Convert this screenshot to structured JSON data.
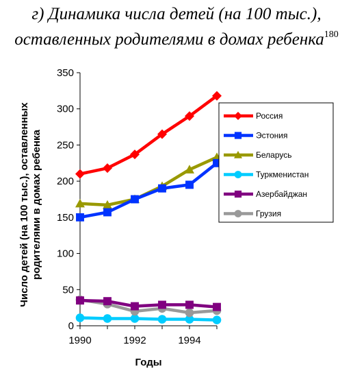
{
  "title": {
    "line1": "г) Динамика числа детей (на 100 тыс.),",
    "line2": "оставленных родителями в домах ребенка",
    "footnote": "180"
  },
  "chart_data": {
    "type": "line",
    "xlabel": "Годы",
    "ylabel_lines": [
      "Число детей (на 100 тыс.), оставленных",
      "родителями в домах ребенка"
    ],
    "x": [
      1990,
      1991,
      1992,
      1993,
      1994,
      1995
    ],
    "xticks": [
      1990,
      1992,
      1994
    ],
    "yticks": [
      0,
      50,
      100,
      150,
      200,
      250,
      300,
      350
    ],
    "ylim": [
      0,
      350
    ],
    "xlim": [
      1990,
      1995
    ],
    "grid": false,
    "legend_position": "right",
    "series": [
      {
        "name": "Россия",
        "color": "#ff0000",
        "marker": "diamond",
        "values": [
          210,
          218,
          237,
          265,
          290,
          318
        ]
      },
      {
        "name": "Эстония",
        "color": "#0033ff",
        "marker": "square",
        "values": [
          150,
          157,
          175,
          190,
          195,
          225
        ]
      },
      {
        "name": "Беларусь",
        "color": "#999900",
        "marker": "triangle",
        "values": [
          169,
          167,
          175,
          193,
          216,
          233
        ]
      },
      {
        "name": "Туркменистан",
        "color": "#00ccff",
        "marker": "circle",
        "values": [
          11,
          10,
          10,
          9,
          9,
          8
        ]
      },
      {
        "name": "Азербайджан",
        "color": "#800080",
        "marker": "square",
        "values": [
          35,
          34,
          27,
          29,
          29,
          26
        ]
      },
      {
        "name": "Грузия",
        "color": "#999999",
        "marker": "circle",
        "values": [
          36,
          30,
          20,
          24,
          18,
          21
        ]
      }
    ]
  }
}
